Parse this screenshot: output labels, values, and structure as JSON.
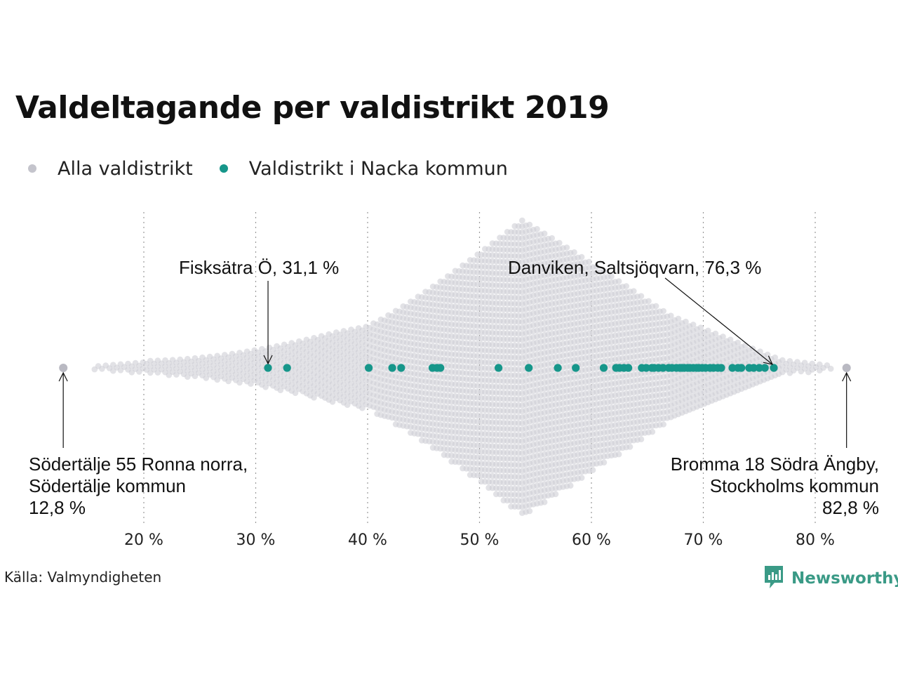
{
  "colors": {
    "all": "#cfcfd6",
    "nacka": "#16968a",
    "extreme": "#b9b9c2",
    "brand": "#3a9a86",
    "grid": "#9a9a9a"
  },
  "legend": [
    {
      "label": "Alla valdistrikt",
      "color": "#c4c4cc"
    },
    {
      "label": "Valdistrikt i Nacka kommun",
      "color": "#16968a"
    }
  ],
  "source": "Källa: Valmyndigheten",
  "brand": {
    "name": "Newsworthy",
    "icon": "newsworthy-logo-icon"
  },
  "chart_data": {
    "type": "scatter",
    "subtype": "beeswarm",
    "title": "Valdeltagande per valdistrikt 2019",
    "xlabel": "",
    "ylabel": "",
    "xlim": [
      12,
      84
    ],
    "grid": true,
    "legend_position": "top-left",
    "x_ticks": [
      {
        "value": 20,
        "label": "20 %"
      },
      {
        "value": 30,
        "label": "30 %"
      },
      {
        "value": 40,
        "label": "40 %"
      },
      {
        "value": 50,
        "label": "50 %"
      },
      {
        "value": 60,
        "label": "60 %"
      },
      {
        "value": 70,
        "label": "70 %"
      },
      {
        "value": 80,
        "label": "80 %"
      }
    ],
    "series": [
      {
        "name": "Alla valdistrikt",
        "approx_distribution_peak": 53.8
      },
      {
        "name": "Valdistrikt i Nacka kommun",
        "values": [
          31.1,
          32.8,
          40.1,
          42.2,
          43.0,
          45.8,
          46.2,
          46.5,
          51.7,
          54.4,
          57.0,
          58.6,
          61.1,
          62.2,
          62.5,
          62.9,
          63.3,
          64.5,
          64.9,
          65.4,
          65.6,
          66.0,
          66.4,
          66.9,
          67.2,
          67.6,
          67.9,
          68.1,
          68.3,
          68.6,
          68.8,
          69.1,
          69.4,
          69.6,
          69.9,
          70.2,
          70.6,
          70.9,
          71.3,
          71.6,
          72.6,
          73.1,
          73.4,
          74.1,
          74.5,
          75.0,
          75.5,
          76.3
        ]
      }
    ],
    "annotations": [
      {
        "key": "fisksatra",
        "x": 31.1,
        "lines": [
          "Fisksätra Ö, 31,1 %"
        ]
      },
      {
        "key": "danviken",
        "x": 76.3,
        "lines": [
          "Danviken, Saltsjöqvarn, 76,3 %"
        ]
      },
      {
        "key": "sodertalje",
        "x": 12.8,
        "lines": [
          "Södertälje 55 Ronna norra,",
          "Södertälje kommun",
          "12,8 %"
        ]
      },
      {
        "key": "bromma",
        "x": 82.8,
        "lines": [
          "Bromma 18 Södra Ängby,",
          "Stockholms kommun",
          "82,8 %"
        ]
      }
    ]
  }
}
